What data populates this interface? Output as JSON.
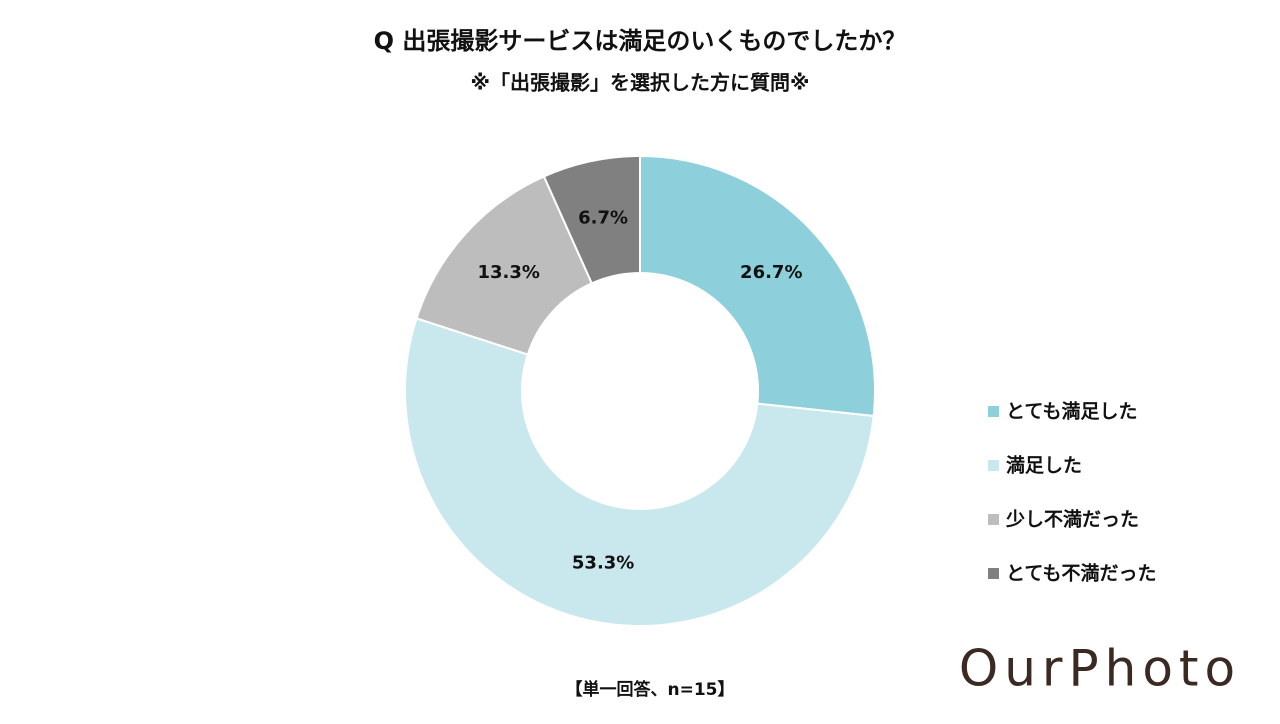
{
  "chart_data": {
    "type": "donut",
    "title": "Q 出張撮影サービスは満足のいくものでしたか？",
    "subtitle": "※「出張撮影」を選択した方に質問※",
    "categories": [
      "とても満足した",
      "満足した",
      "少し不満だった",
      "とても不満だった"
    ],
    "values": [
      26.7,
      53.3,
      13.3,
      6.7
    ],
    "value_labels": [
      "26.7%",
      "53.3%",
      "13.3%",
      "6.7%"
    ],
    "colors": [
      "#8ecfdc",
      "#c9e8ee",
      "#bdbdbd",
      "#808080"
    ],
    "legend": "right",
    "note": "【単一回答、n=15】"
  },
  "logo": "OurPhoto"
}
